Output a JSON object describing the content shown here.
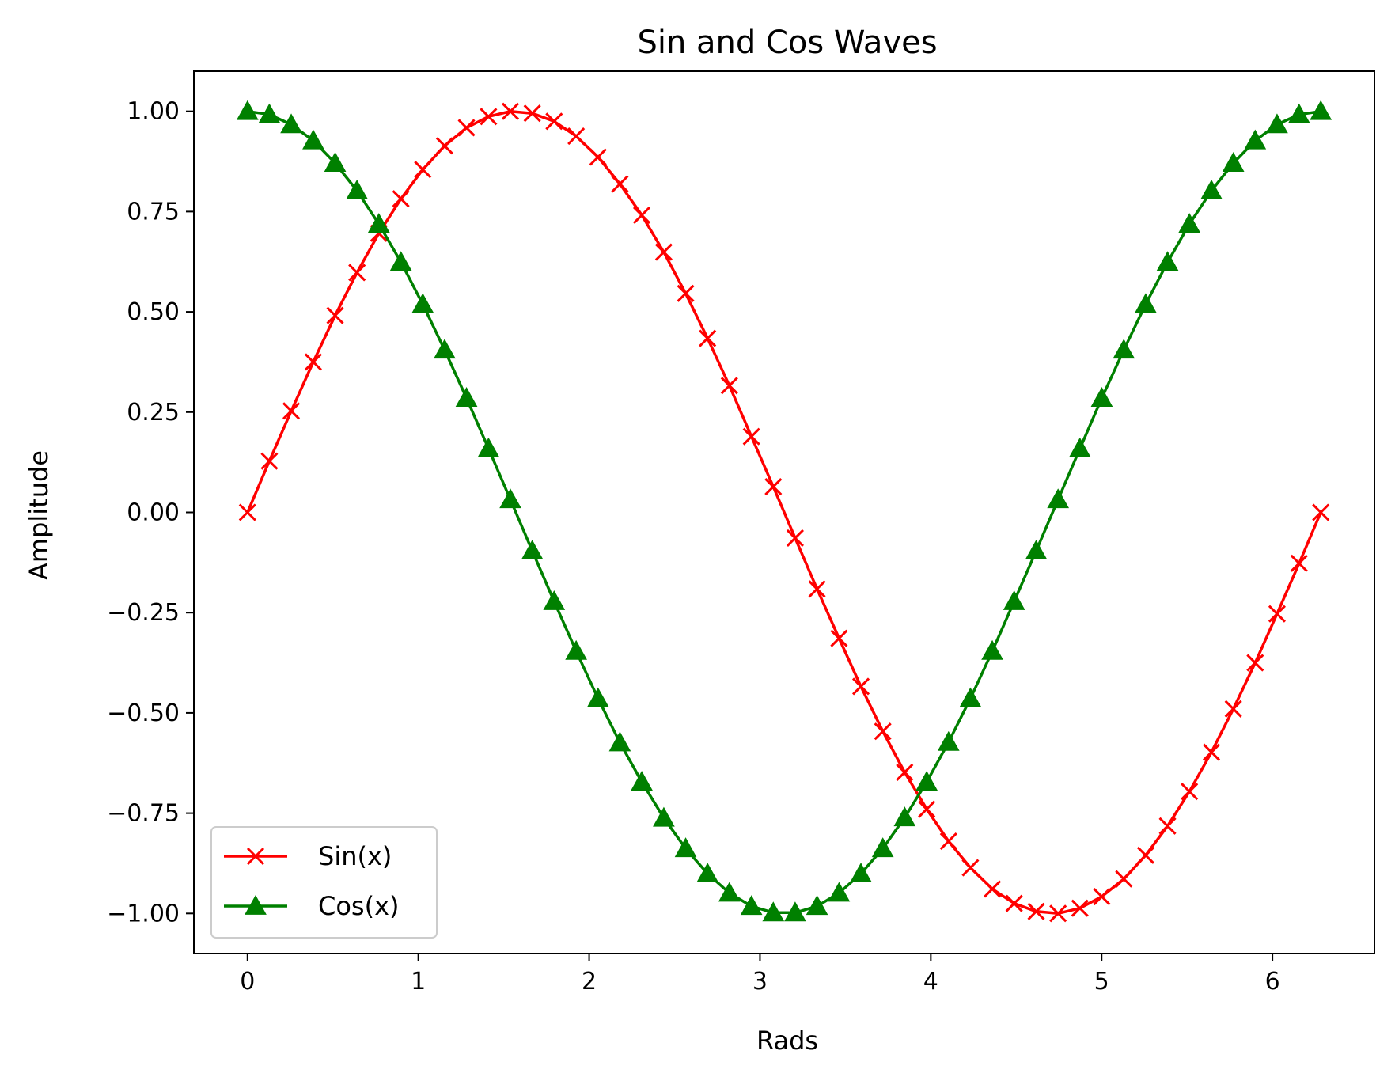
{
  "chart_data": {
    "type": "line",
    "title": "Sin and Cos Waves",
    "xlabel": "Rads",
    "ylabel": "Amplitude",
    "xlim": [
      -0.314,
      6.597
    ],
    "ylim": [
      -1.1,
      1.1
    ],
    "x_ticks": [
      {
        "value": 0,
        "label": "0"
      },
      {
        "value": 1,
        "label": "1"
      },
      {
        "value": 2,
        "label": "2"
      },
      {
        "value": 3,
        "label": "3"
      },
      {
        "value": 4,
        "label": "4"
      },
      {
        "value": 5,
        "label": "5"
      },
      {
        "value": 6,
        "label": "6"
      }
    ],
    "y_ticks": [
      {
        "value": 1.0,
        "label": "1.00"
      },
      {
        "value": 0.75,
        "label": "0.75"
      },
      {
        "value": 0.5,
        "label": "0.50"
      },
      {
        "value": 0.25,
        "label": "0.25"
      },
      {
        "value": 0.0,
        "label": "0.00"
      },
      {
        "value": -0.25,
        "label": "−0.25"
      },
      {
        "value": -0.5,
        "label": "−0.50"
      },
      {
        "value": -0.75,
        "label": "−0.75"
      },
      {
        "value": -1.0,
        "label": "−1.00"
      }
    ],
    "grid": false,
    "legend_position": "lower-left",
    "x": [
      0.0,
      0.128,
      0.256,
      0.385,
      0.513,
      0.641,
      0.769,
      0.898,
      1.026,
      1.154,
      1.282,
      1.411,
      1.539,
      1.667,
      1.795,
      1.924,
      2.052,
      2.18,
      2.308,
      2.437,
      2.565,
      2.693,
      2.821,
      2.95,
      3.078,
      3.206,
      3.334,
      3.463,
      3.591,
      3.719,
      3.847,
      3.976,
      4.104,
      4.232,
      4.36,
      4.488,
      4.617,
      4.745,
      4.873,
      5.001,
      5.13,
      5.258,
      5.386,
      5.514,
      5.643,
      5.771,
      5.899,
      6.027,
      6.156,
      6.283
    ],
    "series": [
      {
        "name": "Sin(x)",
        "color": "#ff0000",
        "marker": "x",
        "values": [
          0.0,
          0.128,
          0.253,
          0.375,
          0.491,
          0.598,
          0.696,
          0.782,
          0.855,
          0.914,
          0.959,
          0.987,
          1.0,
          0.995,
          0.975,
          0.938,
          0.886,
          0.819,
          0.741,
          0.649,
          0.546,
          0.434,
          0.316,
          0.189,
          0.064,
          -0.064,
          -0.191,
          -0.314,
          -0.434,
          -0.546,
          -0.648,
          -0.74,
          -0.82,
          -0.886,
          -0.939,
          -0.975,
          -0.995,
          -1.0,
          -0.987,
          -0.958,
          -0.914,
          -0.855,
          -0.782,
          -0.696,
          -0.598,
          -0.49,
          -0.375,
          -0.253,
          -0.127,
          0.0
        ]
      },
      {
        "name": "Cos(x)",
        "color": "#008000",
        "marker": "triangle-up",
        "values": [
          1.0,
          0.992,
          0.967,
          0.927,
          0.871,
          0.802,
          0.719,
          0.624,
          0.519,
          0.405,
          0.285,
          0.159,
          0.032,
          -0.096,
          -0.222,
          -0.346,
          -0.464,
          -0.574,
          -0.672,
          -0.762,
          -0.838,
          -0.901,
          -0.949,
          -0.982,
          -0.998,
          -0.998,
          -0.982,
          -0.949,
          -0.901,
          -0.838,
          -0.761,
          -0.672,
          -0.573,
          -0.464,
          -0.346,
          -0.222,
          -0.096,
          0.032,
          0.159,
          0.285,
          0.405,
          0.519,
          0.624,
          0.719,
          0.802,
          0.871,
          0.927,
          0.967,
          0.992,
          1.0
        ]
      }
    ]
  }
}
